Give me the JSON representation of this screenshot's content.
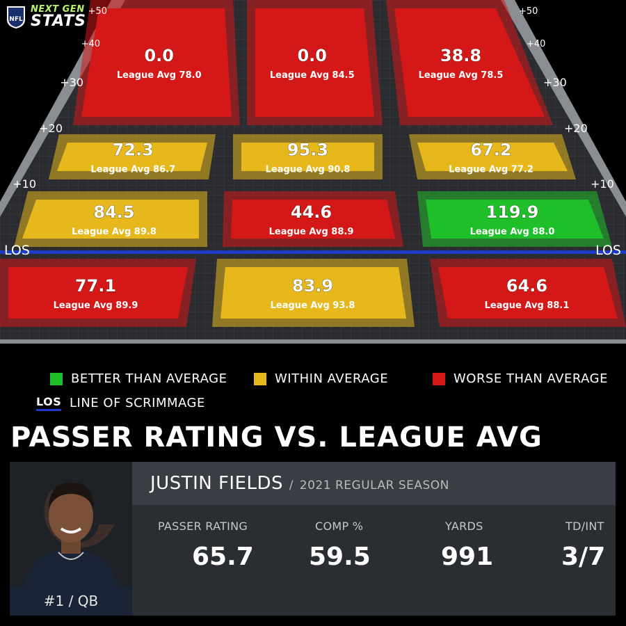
{
  "logo": {
    "line1": "NEXT GEN",
    "line2": "STATS"
  },
  "chart_data": {
    "type": "heatmap",
    "title": "PASSER RATING VS. LEAGUE AVG",
    "yard_labels": [
      "+50",
      "+40",
      "+30",
      "+20",
      "+10"
    ],
    "los_label": "LOS",
    "columns": [
      "left",
      "middle",
      "right"
    ],
    "rows": [
      "20+",
      "10-19",
      "0-9",
      "behind LOS"
    ],
    "zones": [
      {
        "row": 0,
        "col": 0,
        "value": "0.0",
        "league_avg": "League Avg 78.0",
        "rating": "worse"
      },
      {
        "row": 0,
        "col": 1,
        "value": "0.0",
        "league_avg": "League Avg 84.5",
        "rating": "worse"
      },
      {
        "row": 0,
        "col": 2,
        "value": "38.8",
        "league_avg": "League Avg 78.5",
        "rating": "worse"
      },
      {
        "row": 1,
        "col": 0,
        "value": "72.3",
        "league_avg": "League Avg 86.7",
        "rating": "within"
      },
      {
        "row": 1,
        "col": 1,
        "value": "95.3",
        "league_avg": "League Avg 90.8",
        "rating": "within"
      },
      {
        "row": 1,
        "col": 2,
        "value": "67.2",
        "league_avg": "League Avg 77.2",
        "rating": "within"
      },
      {
        "row": 2,
        "col": 0,
        "value": "84.5",
        "league_avg": "League Avg 89.8",
        "rating": "within"
      },
      {
        "row": 2,
        "col": 1,
        "value": "44.6",
        "league_avg": "League Avg 88.9",
        "rating": "worse"
      },
      {
        "row": 2,
        "col": 2,
        "value": "119.9",
        "league_avg": "League Avg 88.0",
        "rating": "better"
      },
      {
        "row": 3,
        "col": 0,
        "value": "77.1",
        "league_avg": "League Avg 89.9",
        "rating": "worse"
      },
      {
        "row": 3,
        "col": 1,
        "value": "83.9",
        "league_avg": "League Avg 93.8",
        "rating": "within"
      },
      {
        "row": 3,
        "col": 2,
        "value": "64.6",
        "league_avg": "League Avg 88.1",
        "rating": "worse"
      }
    ],
    "colors": {
      "better": "#1fbf2a",
      "within": "#e6b81c",
      "worse": "#d41717",
      "los": "#1e3ac8"
    }
  },
  "legend": {
    "better": "BETTER THAN AVERAGE",
    "within": "WITHIN AVERAGE",
    "worse": "WORSE THAN AVERAGE",
    "los_key": "LOS",
    "los": "LINE OF SCRIMMAGE"
  },
  "player": {
    "name": "JUSTIN FIELDS",
    "sep": "/",
    "season": "2021 REGULAR SEASON",
    "jersey": "#1 / QB",
    "stats": [
      {
        "label": "PASSER RATING",
        "value": "65.7"
      },
      {
        "label": "COMP %",
        "value": "59.5"
      },
      {
        "label": "YARDS",
        "value": "991"
      },
      {
        "label": "TD/INT",
        "value": "3/7"
      }
    ]
  }
}
